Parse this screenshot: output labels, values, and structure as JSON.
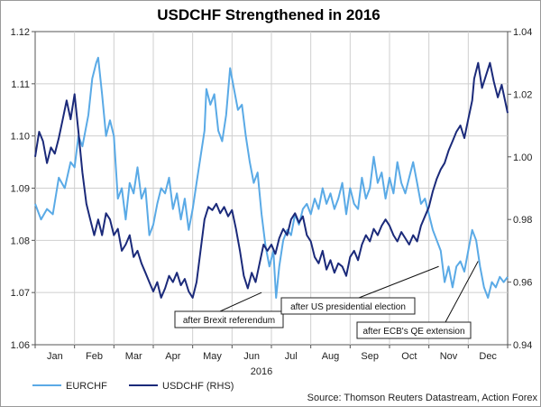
{
  "chart_data": {
    "type": "line",
    "title": "USDCHF Strengthened in 2016",
    "xlabel": "2016",
    "ylabel_left": "",
    "ylabel_right": "",
    "x_categories": [
      "Jan",
      "Feb",
      "Mar",
      "Apr",
      "May",
      "Jun",
      "Jul",
      "Aug",
      "Sep",
      "Oct",
      "Nov",
      "Dec"
    ],
    "y_left": {
      "min": 1.06,
      "max": 1.12,
      "ticks": [
        "1.06",
        "1.07",
        "1.08",
        "1.09",
        "1.10",
        "1.11",
        "1.12"
      ]
    },
    "y_right": {
      "min": 0.94,
      "max": 1.04,
      "ticks": [
        "0.94",
        "0.96",
        "0.98",
        "1.00",
        "1.02",
        "1.04"
      ]
    },
    "series": [
      {
        "name": "EURCHF",
        "axis": "left",
        "color": "#5aaae6",
        "points": [
          [
            0.0,
            1.087
          ],
          [
            0.15,
            1.084
          ],
          [
            0.3,
            1.086
          ],
          [
            0.45,
            1.085
          ],
          [
            0.6,
            1.092
          ],
          [
            0.75,
            1.09
          ],
          [
            0.9,
            1.095
          ],
          [
            1.0,
            1.094
          ],
          [
            1.1,
            1.1
          ],
          [
            1.2,
            1.098
          ],
          [
            1.35,
            1.104
          ],
          [
            1.45,
            1.111
          ],
          [
            1.55,
            1.114
          ],
          [
            1.6,
            1.115
          ],
          [
            1.7,
            1.108
          ],
          [
            1.8,
            1.1
          ],
          [
            1.9,
            1.103
          ],
          [
            2.0,
            1.1
          ],
          [
            2.1,
            1.088
          ],
          [
            2.2,
            1.09
          ],
          [
            2.3,
            1.084
          ],
          [
            2.4,
            1.091
          ],
          [
            2.5,
            1.089
          ],
          [
            2.6,
            1.094
          ],
          [
            2.7,
            1.088
          ],
          [
            2.8,
            1.09
          ],
          [
            2.9,
            1.081
          ],
          [
            3.0,
            1.083
          ],
          [
            3.1,
            1.087
          ],
          [
            3.2,
            1.09
          ],
          [
            3.3,
            1.089
          ],
          [
            3.4,
            1.092
          ],
          [
            3.5,
            1.086
          ],
          [
            3.6,
            1.089
          ],
          [
            3.7,
            1.084
          ],
          [
            3.8,
            1.088
          ],
          [
            3.9,
            1.082
          ],
          [
            4.0,
            1.086
          ],
          [
            4.1,
            1.091
          ],
          [
            4.2,
            1.096
          ],
          [
            4.3,
            1.101
          ],
          [
            4.35,
            1.109
          ],
          [
            4.45,
            1.106
          ],
          [
            4.55,
            1.108
          ],
          [
            4.65,
            1.101
          ],
          [
            4.75,
            1.099
          ],
          [
            4.85,
            1.104
          ],
          [
            4.95,
            1.113
          ],
          [
            5.05,
            1.109
          ],
          [
            5.15,
            1.105
          ],
          [
            5.25,
            1.106
          ],
          [
            5.35,
            1.1
          ],
          [
            5.45,
            1.095
          ],
          [
            5.55,
            1.091
          ],
          [
            5.65,
            1.093
          ],
          [
            5.75,
            1.085
          ],
          [
            5.85,
            1.079
          ],
          [
            5.95,
            1.075
          ],
          [
            6.05,
            1.078
          ],
          [
            6.12,
            1.069
          ],
          [
            6.2,
            1.075
          ],
          [
            6.3,
            1.08
          ],
          [
            6.4,
            1.082
          ],
          [
            6.5,
            1.081
          ],
          [
            6.6,
            1.085
          ],
          [
            6.7,
            1.083
          ],
          [
            6.8,
            1.086
          ],
          [
            6.9,
            1.087
          ],
          [
            7.0,
            1.085
          ],
          [
            7.1,
            1.088
          ],
          [
            7.2,
            1.086
          ],
          [
            7.3,
            1.09
          ],
          [
            7.4,
            1.087
          ],
          [
            7.5,
            1.089
          ],
          [
            7.6,
            1.086
          ],
          [
            7.7,
            1.088
          ],
          [
            7.8,
            1.091
          ],
          [
            7.9,
            1.085
          ],
          [
            8.0,
            1.09
          ],
          [
            8.1,
            1.087
          ],
          [
            8.2,
            1.086
          ],
          [
            8.3,
            1.092
          ],
          [
            8.4,
            1.088
          ],
          [
            8.5,
            1.09
          ],
          [
            8.6,
            1.096
          ],
          [
            8.7,
            1.091
          ],
          [
            8.8,
            1.093
          ],
          [
            8.9,
            1.088
          ],
          [
            9.0,
            1.092
          ],
          [
            9.1,
            1.089
          ],
          [
            9.2,
            1.095
          ],
          [
            9.3,
            1.091
          ],
          [
            9.4,
            1.089
          ],
          [
            9.5,
            1.092
          ],
          [
            9.6,
            1.095
          ],
          [
            9.7,
            1.091
          ],
          [
            9.8,
            1.087
          ],
          [
            9.9,
            1.088
          ],
          [
            10.0,
            1.085
          ],
          [
            10.1,
            1.082
          ],
          [
            10.2,
            1.08
          ],
          [
            10.3,
            1.078
          ],
          [
            10.4,
            1.072
          ],
          [
            10.5,
            1.075
          ],
          [
            10.6,
            1.071
          ],
          [
            10.7,
            1.075
          ],
          [
            10.8,
            1.076
          ],
          [
            10.9,
            1.074
          ],
          [
            11.0,
            1.078
          ],
          [
            11.1,
            1.082
          ],
          [
            11.2,
            1.08
          ],
          [
            11.3,
            1.075
          ],
          [
            11.4,
            1.071
          ],
          [
            11.5,
            1.069
          ],
          [
            11.6,
            1.072
          ],
          [
            11.7,
            1.071
          ],
          [
            11.8,
            1.073
          ],
          [
            11.9,
            1.072
          ],
          [
            12.0,
            1.073
          ]
        ]
      },
      {
        "name": "USDCHF (RHS)",
        "axis": "right",
        "color": "#1b2a7a",
        "points": [
          [
            0.0,
            1.0
          ],
          [
            0.1,
            1.008
          ],
          [
            0.2,
            1.005
          ],
          [
            0.3,
            0.998
          ],
          [
            0.4,
            1.003
          ],
          [
            0.5,
            1.001
          ],
          [
            0.6,
            1.006
          ],
          [
            0.7,
            1.012
          ],
          [
            0.8,
            1.018
          ],
          [
            0.9,
            1.012
          ],
          [
            1.0,
            1.02
          ],
          [
            1.1,
            1.008
          ],
          [
            1.2,
            0.995
          ],
          [
            1.3,
            0.985
          ],
          [
            1.4,
            0.98
          ],
          [
            1.5,
            0.975
          ],
          [
            1.6,
            0.98
          ],
          [
            1.7,
            0.975
          ],
          [
            1.8,
            0.982
          ],
          [
            1.9,
            0.98
          ],
          [
            2.0,
            0.975
          ],
          [
            2.1,
            0.977
          ],
          [
            2.2,
            0.97
          ],
          [
            2.3,
            0.972
          ],
          [
            2.4,
            0.975
          ],
          [
            2.5,
            0.968
          ],
          [
            2.6,
            0.97
          ],
          [
            2.7,
            0.966
          ],
          [
            2.8,
            0.963
          ],
          [
            2.9,
            0.96
          ],
          [
            3.0,
            0.957
          ],
          [
            3.1,
            0.96
          ],
          [
            3.2,
            0.955
          ],
          [
            3.3,
            0.958
          ],
          [
            3.4,
            0.962
          ],
          [
            3.5,
            0.96
          ],
          [
            3.6,
            0.963
          ],
          [
            3.7,
            0.959
          ],
          [
            3.8,
            0.961
          ],
          [
            3.9,
            0.957
          ],
          [
            4.0,
            0.955
          ],
          [
            4.1,
            0.96
          ],
          [
            4.2,
            0.97
          ],
          [
            4.3,
            0.98
          ],
          [
            4.4,
            0.984
          ],
          [
            4.5,
            0.983
          ],
          [
            4.6,
            0.985
          ],
          [
            4.7,
            0.982
          ],
          [
            4.8,
            0.984
          ],
          [
            4.9,
            0.981
          ],
          [
            5.0,
            0.983
          ],
          [
            5.1,
            0.977
          ],
          [
            5.2,
            0.97
          ],
          [
            5.3,
            0.962
          ],
          [
            5.4,
            0.958
          ],
          [
            5.5,
            0.963
          ],
          [
            5.6,
            0.96
          ],
          [
            5.7,
            0.966
          ],
          [
            5.8,
            0.972
          ],
          [
            5.9,
            0.97
          ],
          [
            6.0,
            0.972
          ],
          [
            6.1,
            0.969
          ],
          [
            6.2,
            0.974
          ],
          [
            6.3,
            0.977
          ],
          [
            6.4,
            0.975
          ],
          [
            6.5,
            0.98
          ],
          [
            6.6,
            0.982
          ],
          [
            6.7,
            0.979
          ],
          [
            6.8,
            0.981
          ],
          [
            6.9,
            0.975
          ],
          [
            7.0,
            0.973
          ],
          [
            7.1,
            0.968
          ],
          [
            7.2,
            0.966
          ],
          [
            7.3,
            0.97
          ],
          [
            7.4,
            0.964
          ],
          [
            7.5,
            0.967
          ],
          [
            7.6,
            0.963
          ],
          [
            7.7,
            0.966
          ],
          [
            7.8,
            0.965
          ],
          [
            7.9,
            0.962
          ],
          [
            8.0,
            0.968
          ],
          [
            8.1,
            0.97
          ],
          [
            8.2,
            0.967
          ],
          [
            8.3,
            0.972
          ],
          [
            8.4,
            0.975
          ],
          [
            8.5,
            0.973
          ],
          [
            8.6,
            0.977
          ],
          [
            8.7,
            0.975
          ],
          [
            8.8,
            0.978
          ],
          [
            8.9,
            0.98
          ],
          [
            9.0,
            0.978
          ],
          [
            9.1,
            0.975
          ],
          [
            9.2,
            0.973
          ],
          [
            9.3,
            0.976
          ],
          [
            9.4,
            0.974
          ],
          [
            9.5,
            0.972
          ],
          [
            9.6,
            0.975
          ],
          [
            9.7,
            0.973
          ],
          [
            9.8,
            0.978
          ],
          [
            9.9,
            0.981
          ],
          [
            10.0,
            0.984
          ],
          [
            10.1,
            0.989
          ],
          [
            10.2,
            0.993
          ],
          [
            10.3,
            0.996
          ],
          [
            10.4,
            0.998
          ],
          [
            10.5,
            1.002
          ],
          [
            10.6,
            1.005
          ],
          [
            10.7,
            1.008
          ],
          [
            10.8,
            1.01
          ],
          [
            10.9,
            1.006
          ],
          [
            11.0,
            1.012
          ],
          [
            11.1,
            1.018
          ],
          [
            11.15,
            1.025
          ],
          [
            11.25,
            1.03
          ],
          [
            11.35,
            1.022
          ],
          [
            11.45,
            1.026
          ],
          [
            11.55,
            1.03
          ],
          [
            11.65,
            1.024
          ],
          [
            11.75,
            1.019
          ],
          [
            11.85,
            1.023
          ],
          [
            11.95,
            1.017
          ],
          [
            12.0,
            1.014
          ]
        ]
      }
    ],
    "annotations": [
      {
        "text": "after Brexit referendum",
        "x": 5.75,
        "y": 1.07,
        "axis": "left"
      },
      {
        "text": "after US presidential election",
        "x": 10.25,
        "y": 1.075,
        "axis": "left"
      },
      {
        "text": "after ECB's QE extension",
        "x": 11.25,
        "y": 1.076,
        "axis": "left"
      }
    ],
    "legend": [
      {
        "label": "EURCHF",
        "color": "#5aaae6"
      },
      {
        "label": "USDCHF (RHS)",
        "color": "#1b2a7a"
      }
    ],
    "source": "Source: Thomson Reuters Datastream, Action Forex"
  }
}
